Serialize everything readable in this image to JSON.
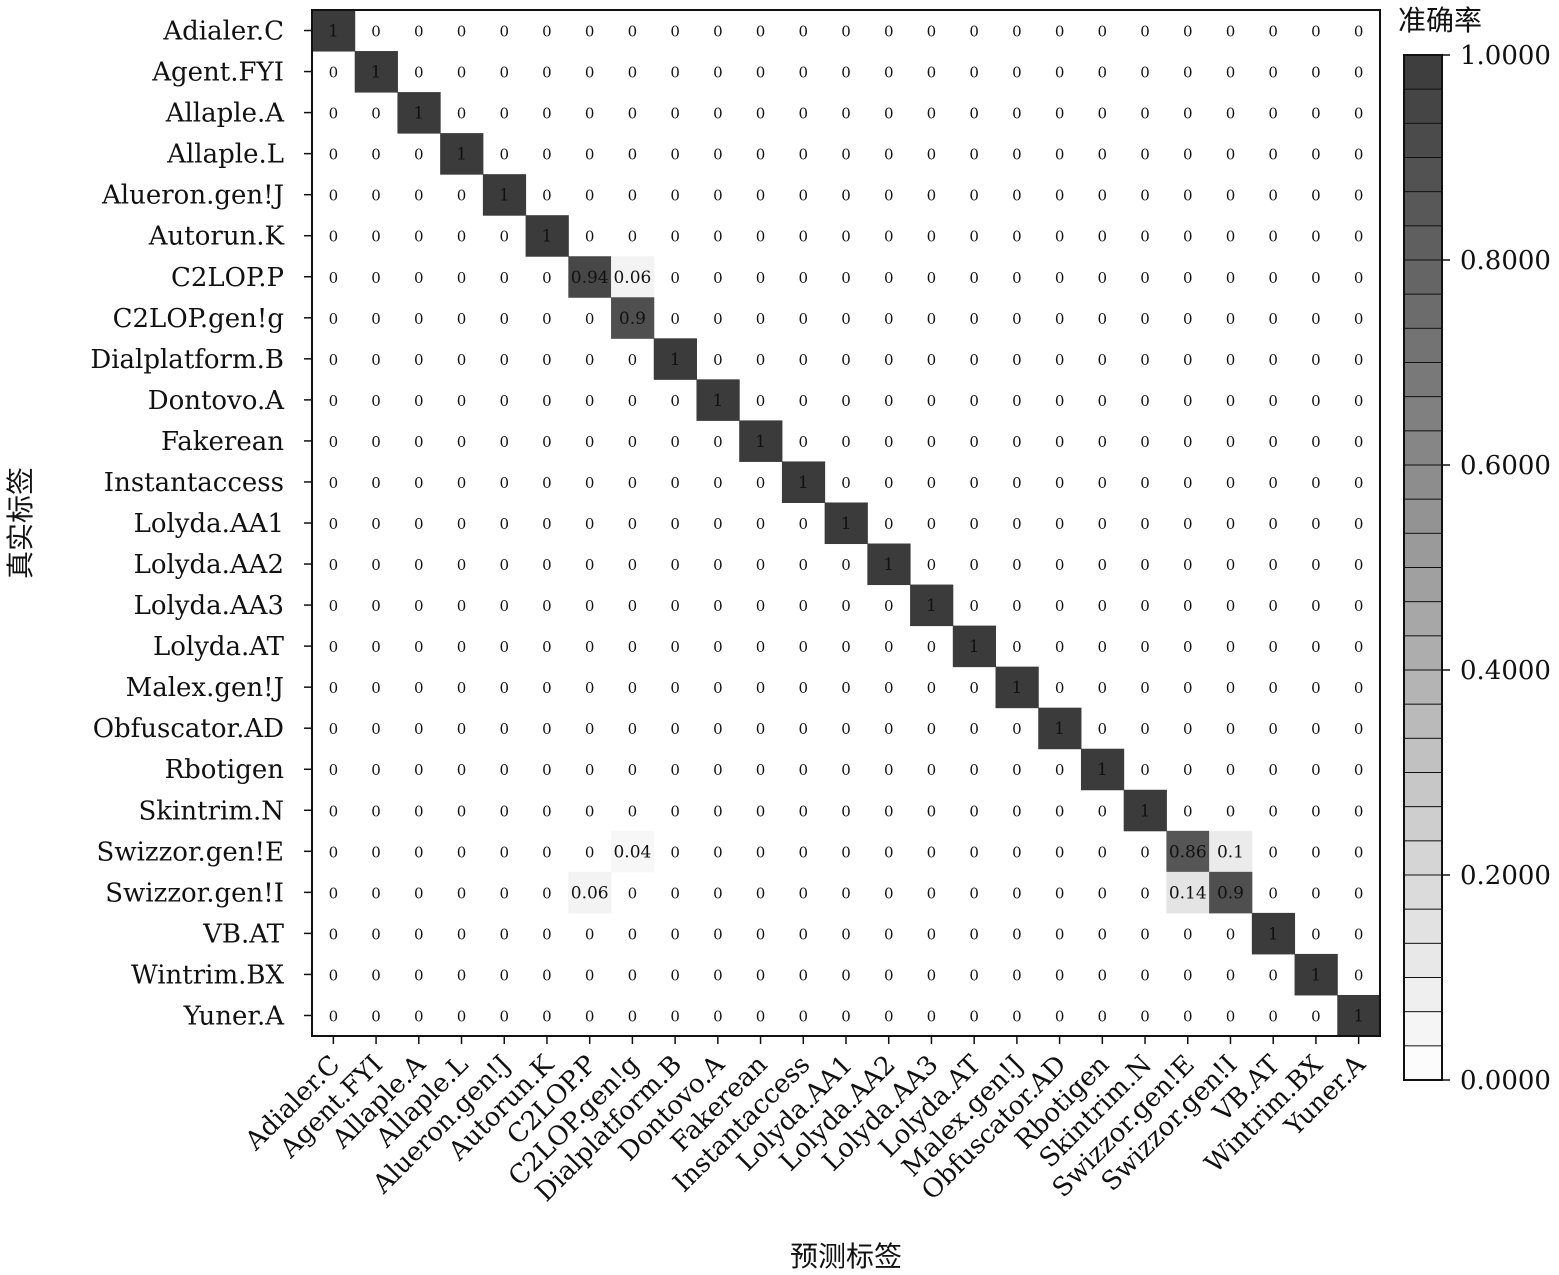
{
  "chart_data": {
    "type": "heatmap",
    "xlabel": "预测标签",
    "ylabel": "真实标签",
    "colorbar": {
      "label": "准确率",
      "range": [
        0,
        1
      ],
      "ticks": [
        "0.0000",
        "0.2000",
        "0.4000",
        "0.6000",
        "0.8000",
        "1.0000"
      ],
      "steps": 30,
      "color_low": "#ffffff",
      "color_high": "#3b3b3b"
    },
    "labels": [
      "Adialer.C",
      "Agent.FYI",
      "Allaple.A",
      "Allaple.L",
      "Alueron.gen!J",
      "Autorun.K",
      "C2LOP.P",
      "C2LOP.gen!g",
      "Dialplatform.B",
      "Dontovo.A",
      "Fakerean",
      "Instantaccess",
      "Lolyda.AA1",
      "Lolyda.AA2",
      "Lolyda.AA3",
      "Lolyda.AT",
      "Malex.gen!J",
      "Obfuscator.AD",
      "Rbotigen",
      "Skintrim.N",
      "Swizzor.gen!E",
      "Swizzor.gen!I",
      "VB.AT",
      "Wintrim.BX",
      "Yuner.A"
    ],
    "diagonal": [
      1,
      1,
      1,
      1,
      1,
      1,
      0.94,
      0.9,
      1,
      1,
      1,
      1,
      1,
      1,
      1,
      1,
      1,
      1,
      1,
      1,
      0.86,
      0.9,
      1,
      1,
      1
    ],
    "off_diagonal": [
      {
        "row": 6,
        "col": 7,
        "value": 0.06
      },
      {
        "row": 20,
        "col": 7,
        "value": 0.04
      },
      {
        "row": 20,
        "col": 21,
        "value": 0.1
      },
      {
        "row": 21,
        "col": 6,
        "value": 0.06
      },
      {
        "row": 21,
        "col": 20,
        "value": 0.14
      }
    ],
    "default_value": 0
  }
}
